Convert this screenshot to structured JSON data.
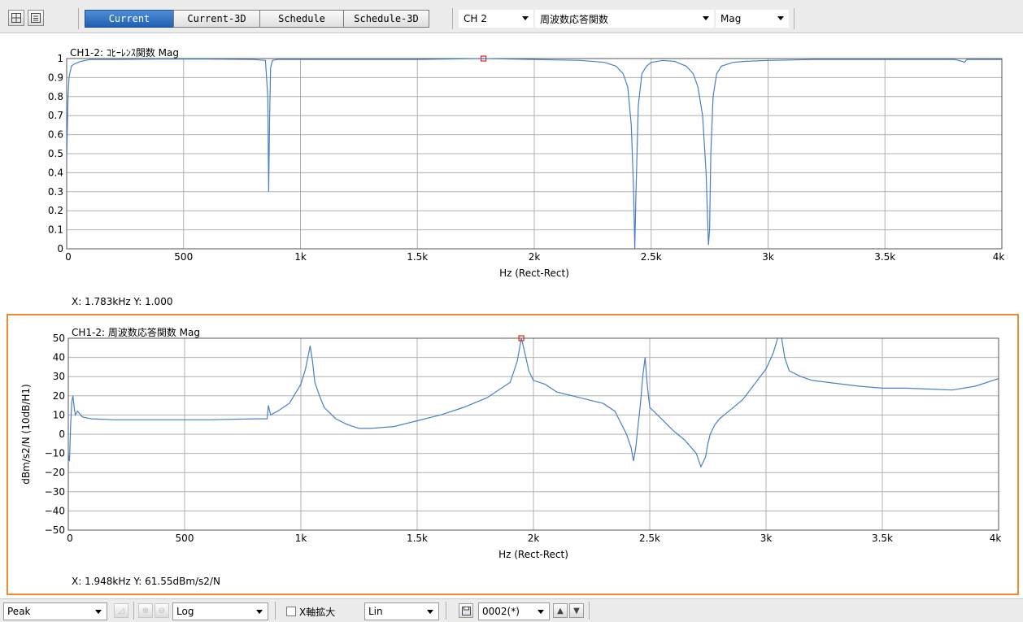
{
  "toolbar": {
    "tabs": [
      {
        "label": "Current",
        "active": true
      },
      {
        "label": "Current-3D",
        "active": false
      },
      {
        "label": "Schedule",
        "active": false
      },
      {
        "label": "Schedule-3D",
        "active": false
      }
    ],
    "channel": "CH 2",
    "function": "周波数応答関数",
    "display": "Mag",
    "icons": [
      "grid-layout-icon",
      "single-layout-icon"
    ]
  },
  "chart_data": [
    {
      "type": "line",
      "title": "CH1-2: ｺﾋｰﾚﾝｽ関数 Mag",
      "xlabel": "Hz (Rect-Rect)",
      "ylabel": "",
      "xlim": [
        0,
        4000
      ],
      "ylim": [
        0,
        1
      ],
      "x_ticks": [
        0,
        500,
        1000,
        1500,
        2000,
        2500,
        3000,
        3500,
        4000
      ],
      "x_tick_labels": [
        "0",
        "500",
        "1k",
        "1.5k",
        "2k",
        "2.5k",
        "3k",
        "3.5k",
        "4k"
      ],
      "y_ticks": [
        0,
        0.1,
        0.2,
        0.3,
        0.4,
        0.5,
        0.6,
        0.7,
        0.8,
        0.9,
        1
      ],
      "y_tick_labels": [
        "0",
        "0.1",
        "0.2",
        "0.3",
        "0.4",
        "0.5",
        "0.6",
        "0.7",
        "0.8",
        "0.9",
        "1"
      ],
      "grid": true,
      "line_color": "#4a7fc8",
      "cursor": {
        "x": 1783,
        "y": 1.0
      },
      "series": [
        {
          "x": [
            0,
            3,
            6,
            10,
            15,
            20,
            30,
            40,
            60,
            80,
            100,
            200,
            400,
            600,
            800,
            850,
            860,
            864,
            868,
            872,
            880,
            900,
            1000,
            1200,
            1500,
            1783,
            2000,
            2200,
            2300,
            2350,
            2380,
            2400,
            2415,
            2425,
            2430,
            2435,
            2445,
            2460,
            2480,
            2500,
            2550,
            2600,
            2650,
            2680,
            2700,
            2720,
            2735,
            2745,
            2750,
            2755,
            2765,
            2780,
            2800,
            2850,
            2900,
            3000,
            3200,
            3500,
            3800,
            3830,
            3840,
            3850,
            3900,
            4000
          ],
          "y": [
            0.46,
            0.65,
            0.8,
            0.9,
            0.93,
            0.96,
            0.97,
            0.975,
            0.985,
            0.99,
            0.995,
            0.995,
            0.997,
            0.997,
            0.995,
            0.99,
            0.8,
            0.3,
            0.7,
            0.95,
            0.99,
            0.995,
            0.995,
            0.995,
            0.995,
            1.0,
            0.995,
            0.99,
            0.98,
            0.96,
            0.92,
            0.85,
            0.65,
            0.3,
            0.0,
            0.3,
            0.75,
            0.92,
            0.96,
            0.98,
            0.99,
            0.985,
            0.96,
            0.92,
            0.85,
            0.7,
            0.4,
            0.02,
            0.1,
            0.5,
            0.8,
            0.92,
            0.96,
            0.98,
            0.985,
            0.99,
            0.995,
            0.995,
            0.995,
            0.985,
            0.98,
            0.995,
            0.995,
            0.995
          ]
        }
      ]
    },
    {
      "type": "line",
      "title": "CH1-2: 周波数応答関数 Mag",
      "xlabel": "Hz (Rect-Rect)",
      "ylabel": "dBm/s2/N (10dB/H1)",
      "xlim": [
        0,
        4000
      ],
      "ylim": [
        -50,
        50
      ],
      "x_ticks": [
        0,
        500,
        1000,
        1500,
        2000,
        2500,
        3000,
        3500,
        4000
      ],
      "x_tick_labels": [
        "0",
        "500",
        "1k",
        "1.5k",
        "2k",
        "2.5k",
        "3k",
        "3.5k",
        "4k"
      ],
      "y_ticks": [
        -50,
        -40,
        -30,
        -20,
        -10,
        0,
        10,
        20,
        30,
        40,
        50
      ],
      "y_tick_labels": [
        "−50",
        "−40",
        "−30",
        "−20",
        "−10",
        "0",
        "10",
        "20",
        "30",
        "40",
        "50"
      ],
      "grid": true,
      "line_color": "#4a7fc8",
      "cursor": {
        "x": 1948,
        "y": 61.55
      },
      "series": [
        {
          "x": [
            0,
            5,
            10,
            15,
            20,
            25,
            30,
            40,
            60,
            100,
            200,
            400,
            600,
            800,
            855,
            860,
            870,
            900,
            950,
            1000,
            1020,
            1040,
            1050,
            1060,
            1080,
            1100,
            1150,
            1200,
            1250,
            1300,
            1400,
            1500,
            1600,
            1700,
            1800,
            1900,
            1930,
            1948,
            1960,
            1980,
            2000,
            2050,
            2100,
            2200,
            2300,
            2350,
            2400,
            2420,
            2430,
            2440,
            2460,
            2470,
            2480,
            2490,
            2500,
            2550,
            2600,
            2650,
            2700,
            2720,
            2740,
            2750,
            2760,
            2780,
            2800,
            2850,
            2900,
            2950,
            3000,
            3030,
            3050,
            3060,
            3070,
            3080,
            3100,
            3150,
            3200,
            3300,
            3400,
            3500,
            3600,
            3700,
            3800,
            3900,
            4000
          ],
          "y": [
            -10,
            -14,
            5,
            17,
            20,
            14,
            10,
            12,
            9,
            8,
            7.5,
            7.5,
            7.5,
            8,
            8,
            15,
            10,
            12,
            16,
            26,
            34,
            46,
            38,
            27,
            20,
            14,
            8,
            5,
            3,
            3,
            4,
            7,
            10,
            14,
            19,
            27,
            38,
            50,
            44,
            33,
            28,
            26,
            22,
            19,
            16,
            12,
            0,
            -7,
            -14,
            -7,
            16,
            30,
            40,
            25,
            14,
            8,
            2,
            -3,
            -10,
            -17,
            -12,
            -5,
            0,
            5,
            8,
            13,
            18,
            26,
            34,
            42,
            50,
            55,
            48,
            40,
            33,
            30,
            28,
            26.5,
            25,
            24,
            24,
            23.5,
            23,
            25,
            29
          ]
        }
      ]
    }
  ],
  "readouts": {
    "top": "X: 1.783kHz Y: 1.000",
    "bottom": "X: 1.948kHz Y: 61.55dBm/s2/N"
  },
  "bottom_toolbar": {
    "peak_select": "Peak",
    "xscale_select": "Log",
    "xaxis_zoom_label": "X軸拡大",
    "yscale_select": "Lin",
    "record_select": "0002(*)"
  }
}
